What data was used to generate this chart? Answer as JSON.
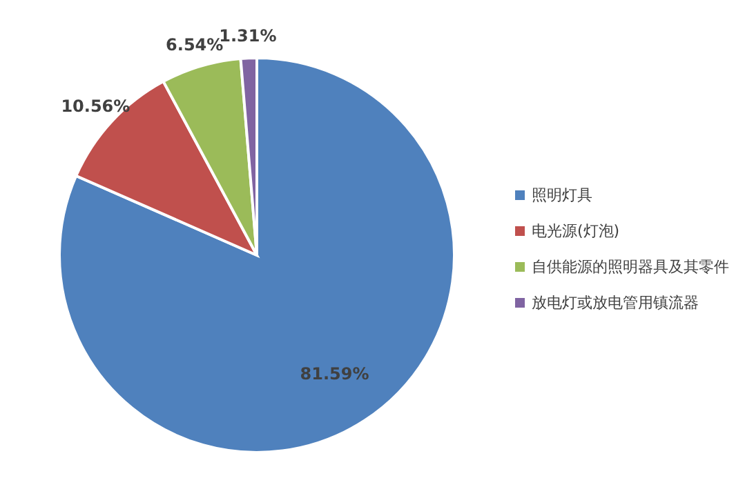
{
  "chart_data": {
    "type": "pie",
    "categories": [
      "照明灯具",
      "电光源(灯泡)",
      "自供能源的照明器具及其零件",
      "放电灯或放电管用镇流器"
    ],
    "values": [
      81.59,
      10.56,
      6.54,
      1.31
    ],
    "colors": [
      "#4f81bd",
      "#c0504d",
      "#9bbb59",
      "#8064a2"
    ],
    "value_labels": [
      "81.59%",
      "10.56%",
      "6.54%",
      "1.31%"
    ],
    "legend": "right"
  }
}
